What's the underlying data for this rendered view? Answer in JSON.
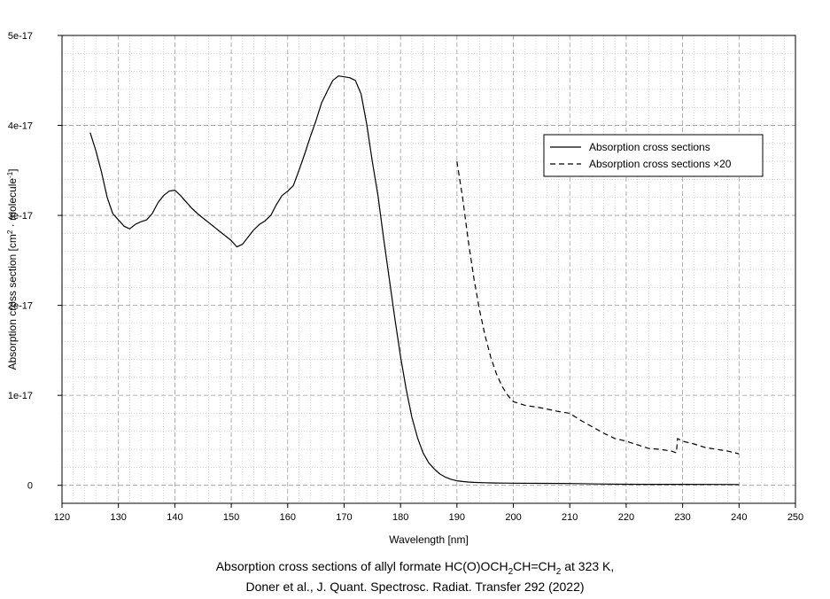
{
  "chart_data": {
    "type": "line",
    "xlabel": "Wavelength [nm]",
    "ylabel_parts": [
      "Absorption cross section [cm",
      "2",
      " · molecule",
      "-1",
      "]"
    ],
    "xlim": [
      120,
      250
    ],
    "ylim": [
      -2e-18,
      5e-17
    ],
    "xticks": [
      120,
      130,
      140,
      150,
      160,
      170,
      180,
      190,
      200,
      210,
      220,
      230,
      240,
      250
    ],
    "xtick_labels": [
      "120",
      "130",
      "140",
      "150",
      "160",
      "170",
      "180",
      "190",
      "200",
      "210",
      "220",
      "230",
      "240",
      "250"
    ],
    "yticks": [
      0,
      1e-17,
      2e-17,
      3e-17,
      4e-17,
      5e-17
    ],
    "ytick_labels": [
      "0",
      "1e-17",
      "2e-17",
      "3e-17",
      "4e-17",
      "5e-17"
    ],
    "grid": true,
    "legend_position": "top-right",
    "series": [
      {
        "name": "Absorption cross sections",
        "style": "solid",
        "x": [
          125,
          126,
          127,
          128,
          129,
          130,
          131,
          132,
          133,
          134,
          135,
          136,
          137,
          138,
          139,
          140,
          141,
          142,
          143,
          144,
          145,
          146,
          147,
          148,
          149,
          150,
          151,
          152,
          153,
          154,
          155,
          156,
          157,
          158,
          159,
          160,
          161,
          162,
          163,
          164,
          165,
          166,
          167,
          168,
          169,
          170,
          171,
          172,
          173,
          174,
          175,
          176,
          177,
          178,
          179,
          180,
          181,
          182,
          183,
          184,
          185,
          186,
          187,
          188,
          189,
          190,
          191,
          192,
          193,
          194,
          195,
          196,
          197,
          198,
          200,
          205,
          210,
          215,
          220,
          225,
          230,
          235,
          240
        ],
        "values": [
          3.92e-17,
          3.72e-17,
          3.48e-17,
          3.2e-17,
          3.02e-17,
          2.95e-17,
          2.88e-17,
          2.85e-17,
          2.9e-17,
          2.93e-17,
          2.95e-17,
          3.02e-17,
          3.14e-17,
          3.22e-17,
          3.27e-17,
          3.28e-17,
          3.22e-17,
          3.15e-17,
          3.08e-17,
          3.02e-17,
          2.97e-17,
          2.92e-17,
          2.87e-17,
          2.82e-17,
          2.77e-17,
          2.72e-17,
          2.65e-17,
          2.68e-17,
          2.76e-17,
          2.84e-17,
          2.9e-17,
          2.94e-17,
          3e-17,
          3.12e-17,
          3.22e-17,
          3.27e-17,
          3.33e-17,
          3.5e-17,
          3.68e-17,
          3.87e-17,
          4.05e-17,
          4.25e-17,
          4.38e-17,
          4.5e-17,
          4.55e-17,
          4.54e-17,
          4.53e-17,
          4.5e-17,
          4.35e-17,
          4.02e-17,
          3.6e-17,
          3.22e-17,
          2.75e-17,
          2.3e-17,
          1.85e-17,
          1.43e-17,
          1.07e-17,
          7.6e-18,
          5.3e-18,
          3.6e-18,
          2.5e-18,
          1.8e-18,
          1.25e-18,
          9e-19,
          6.5e-19,
          5e-19,
          4.2e-19,
          3.6e-19,
          3.2e-19,
          3e-19,
          2.8e-19,
          2.7e-19,
          2.6e-19,
          2.5e-19,
          2.4e-19,
          2.2e-19,
          2e-19,
          1.5e-19,
          1.2e-19,
          1.1e-19,
          1.1e-19,
          1e-19,
          9e-20
        ]
      },
      {
        "name": "Absorption cross sections ×20",
        "style": "dashed",
        "x": [
          190,
          191,
          192,
          193,
          194,
          195,
          196,
          197,
          198,
          199,
          200,
          202,
          205,
          208,
          210,
          212,
          214,
          216,
          218,
          220,
          222,
          224,
          226,
          228,
          228.9,
          229.1,
          230,
          232,
          234,
          236,
          238,
          240
        ],
        "values": [
          3.6e-17,
          3.2e-17,
          2.72e-17,
          2.3e-17,
          1.95e-17,
          1.66e-17,
          1.42e-17,
          1.24e-17,
          1.1e-17,
          1e-17,
          9.3e-18,
          8.9e-18,
          8.6e-18,
          8.2e-18,
          8e-18,
          7.2e-18,
          6.5e-18,
          5.8e-18,
          5.2e-18,
          4.9e-18,
          4.5e-18,
          4.1e-18,
          4e-18,
          3.8e-18,
          3.6e-18,
          5.2e-18,
          4.9e-18,
          4.6e-18,
          4.2e-18,
          4e-18,
          3.8e-18,
          3.5e-18
        ]
      }
    ]
  },
  "caption": {
    "line1_prefix": "Absorption cross sections of allyl formate HC(O)OCH",
    "line1_sub1": "2",
    "line1_mid": "CH=CH",
    "line1_sub2": "2",
    "line1_suffix": " at 323 K,",
    "line2": "Doner et al., J. Quant. Spectrosc. Radiat. Transfer 292 (2022)"
  }
}
